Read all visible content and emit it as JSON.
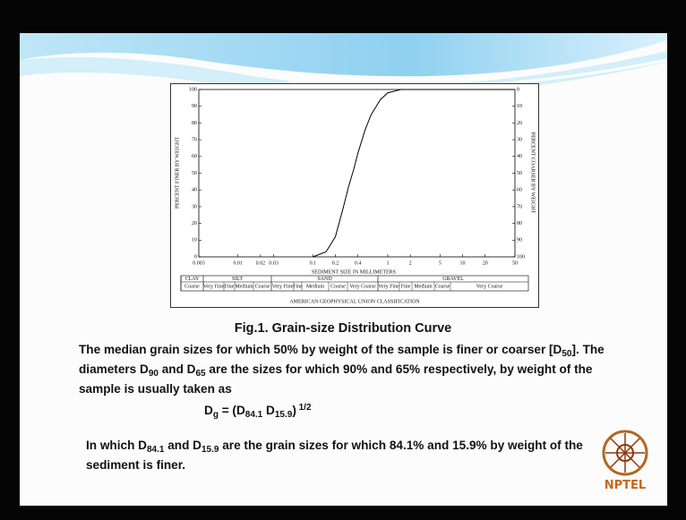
{
  "chart_data": {
    "type": "line",
    "x_label": "SEDIMENT SIZE IN MILLIMETERS",
    "y_label": "PERCENT FINER BY WEIGHT",
    "y2_label": "PERCENT COARSER BY WEIGHT",
    "xscale": "log",
    "xlim": [
      0.003,
      50
    ],
    "xticks": [
      0.003,
      0.01,
      0.02,
      0.03,
      0.1,
      0.2,
      0.4,
      1,
      2,
      5,
      10,
      20,
      50
    ],
    "ylim": [
      0,
      100
    ],
    "yticks": [
      0,
      10,
      20,
      30,
      40,
      50,
      60,
      70,
      80,
      90,
      100
    ],
    "y2lim": [
      100,
      0
    ],
    "y2ticks": [
      0,
      10,
      20,
      30,
      40,
      50,
      60,
      70,
      80,
      90,
      100
    ],
    "x": [
      0.1,
      0.15,
      0.2,
      0.25,
      0.3,
      0.35,
      0.4,
      0.5,
      0.6,
      0.8,
      1,
      1.5,
      50
    ],
    "values": [
      0,
      3,
      12,
      28,
      42,
      52,
      62,
      76,
      85,
      94,
      98,
      100,
      100
    ],
    "color": "#000000",
    "classification": {
      "groups": [
        {
          "name": "CLAY",
          "classes": [
            "Coarse"
          ]
        },
        {
          "name": "SILT",
          "classes": [
            "Very Fine",
            "Fine",
            "Medium",
            "Coarse"
          ]
        },
        {
          "name": "SAND",
          "classes": [
            "Very Fine",
            "Fine",
            "Medium",
            "Coarse",
            "Very Coarse"
          ]
        },
        {
          "name": "GRAVEL",
          "classes": [
            "Very Fine",
            "Fine",
            "Medium",
            "Coarse",
            "Very Coarse"
          ]
        }
      ],
      "caption": "AMERICAN GEOPHYSICAL UNION CLASSIFICATION"
    }
  },
  "slide": {
    "caption": "Fig.1. Grain-size Distribution Curve",
    "paragraph_1": [
      "The median grain sizes for which 50% by weight of the sample is finer or coarser [D",
      "50",
      "]. The diameters D",
      "90",
      " and D",
      "65",
      " are the sizes for which 90% and 65% respectively, by weight of the sample is usually taken as"
    ],
    "equation": [
      "D",
      "g",
      " = (D",
      "84.1",
      " D",
      "15.9",
      ")",
      " 1/2"
    ],
    "paragraph_2": [
      "In which D",
      "84.1",
      " and D",
      "15.9",
      " are the grain sizes for which 84.1% and 15.9% by weight of the sediment is finer."
    ],
    "logo": "NPTEL"
  }
}
